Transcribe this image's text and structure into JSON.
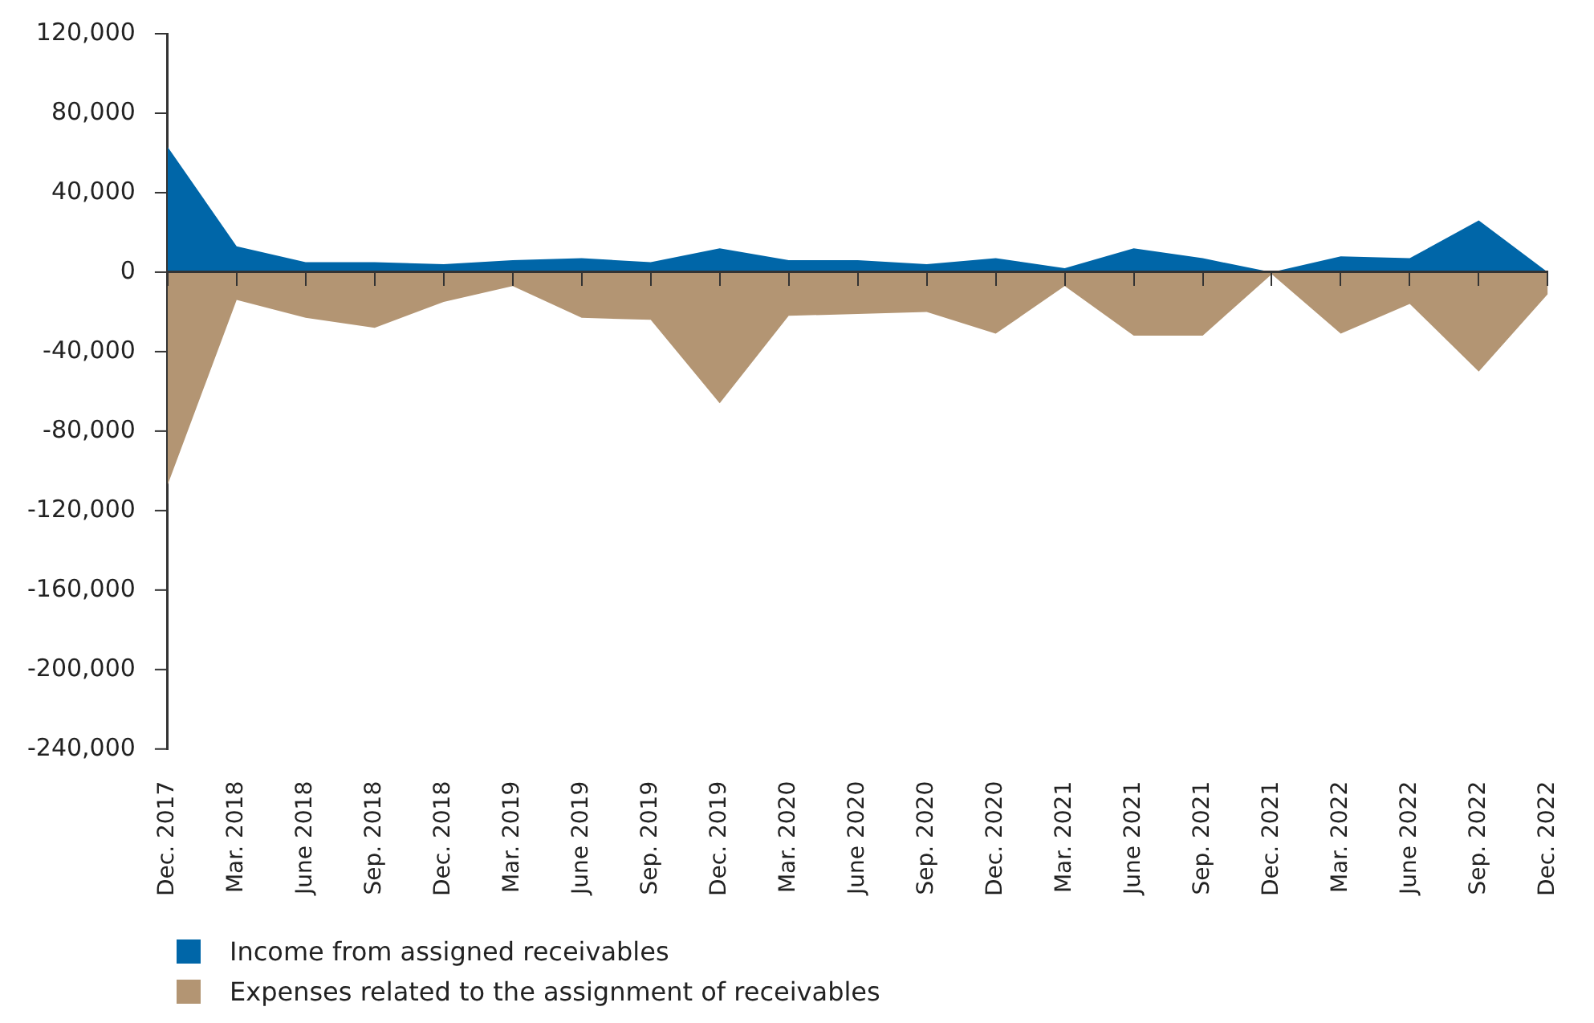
{
  "chart_data": {
    "type": "area",
    "categories": [
      "Dec. 2017",
      "Mar. 2018",
      "June 2018",
      "Sep. 2018",
      "Dec. 2018",
      "Mar. 2019",
      "June 2019",
      "Sep. 2019",
      "Dec. 2019",
      "Mar. 2020",
      "June 2020",
      "Sep. 2020",
      "Dec. 2020",
      "Mar. 2021",
      "June 2021",
      "Sep. 2021",
      "Dec. 2021",
      "Mar. 2022",
      "June 2022",
      "Sep. 2022",
      "Dec. 2022"
    ],
    "series": [
      {
        "name": "Income from assigned receivables",
        "color": "#0066a8",
        "values": [
          63000,
          13000,
          5000,
          5000,
          4000,
          6000,
          7000,
          5000,
          12000,
          6000,
          6000,
          4000,
          7000,
          2000,
          12000,
          7000,
          0,
          8000,
          7000,
          26000,
          0
        ]
      },
      {
        "name": "Expenses related to the assignment of receivables",
        "color": "#b39573",
        "values": [
          -107000,
          -14000,
          -23000,
          -28000,
          -15000,
          -7000,
          -23000,
          -24000,
          -66000,
          -22000,
          -21000,
          -20000,
          -31000,
          -7000,
          -32000,
          -32000,
          -1000,
          -31000,
          -16000,
          -50000,
          -11000
        ]
      }
    ],
    "ylim": [
      -240000,
      120000
    ],
    "yticks": [
      {
        "value": -240000,
        "label": "-240,000"
      },
      {
        "value": -200000,
        "label": "-200,000"
      },
      {
        "value": -160000,
        "label": "-160,000"
      },
      {
        "value": -120000,
        "label": "-120,000"
      },
      {
        "value": -80000,
        "label": "-80,000"
      },
      {
        "value": -40000,
        "label": "-40,000"
      },
      0,
      {
        "value": 40000,
        "label": "40,000"
      },
      {
        "value": 80000,
        "label": "80,000"
      },
      {
        "value": 120000,
        "label": "120,000"
      }
    ],
    "legend": "bottom left"
  }
}
